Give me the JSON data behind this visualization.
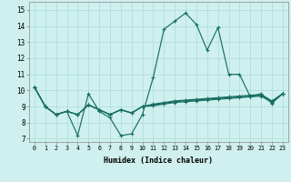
{
  "xlabel": "Humidex (Indice chaleur)",
  "xlim": [
    -0.5,
    23.5
  ],
  "ylim": [
    6.8,
    15.5
  ],
  "yticks": [
    7,
    8,
    9,
    10,
    11,
    12,
    13,
    14,
    15
  ],
  "xticks": [
    0,
    1,
    2,
    3,
    4,
    5,
    6,
    7,
    8,
    9,
    10,
    11,
    12,
    13,
    14,
    15,
    16,
    17,
    18,
    19,
    20,
    21,
    22,
    23
  ],
  "bg_color": "#cff0ee",
  "line_color": "#1a6e64",
  "series": [
    [
      10.2,
      9.0,
      8.5,
      8.7,
      7.2,
      9.8,
      8.7,
      8.3,
      7.2,
      7.3,
      8.5,
      10.8,
      13.8,
      14.3,
      14.8,
      14.1,
      12.5,
      13.9,
      11.0,
      11.0,
      9.6,
      9.8,
      9.2,
      9.8
    ],
    [
      10.2,
      9.0,
      8.5,
      8.7,
      8.5,
      9.1,
      8.8,
      8.5,
      8.8,
      8.6,
      9.0,
      9.15,
      9.25,
      9.35,
      9.4,
      9.45,
      9.5,
      9.55,
      9.6,
      9.65,
      9.7,
      9.75,
      9.35,
      9.8
    ],
    [
      10.2,
      9.0,
      8.5,
      8.7,
      8.5,
      9.1,
      8.8,
      8.5,
      8.8,
      8.6,
      9.0,
      9.1,
      9.2,
      9.3,
      9.35,
      9.4,
      9.45,
      9.5,
      9.55,
      9.6,
      9.65,
      9.7,
      9.3,
      9.8
    ],
    [
      10.2,
      9.0,
      8.5,
      8.7,
      8.5,
      9.1,
      8.8,
      8.5,
      8.8,
      8.6,
      9.0,
      9.05,
      9.15,
      9.25,
      9.3,
      9.35,
      9.4,
      9.45,
      9.5,
      9.55,
      9.6,
      9.65,
      9.25,
      9.8
    ]
  ]
}
